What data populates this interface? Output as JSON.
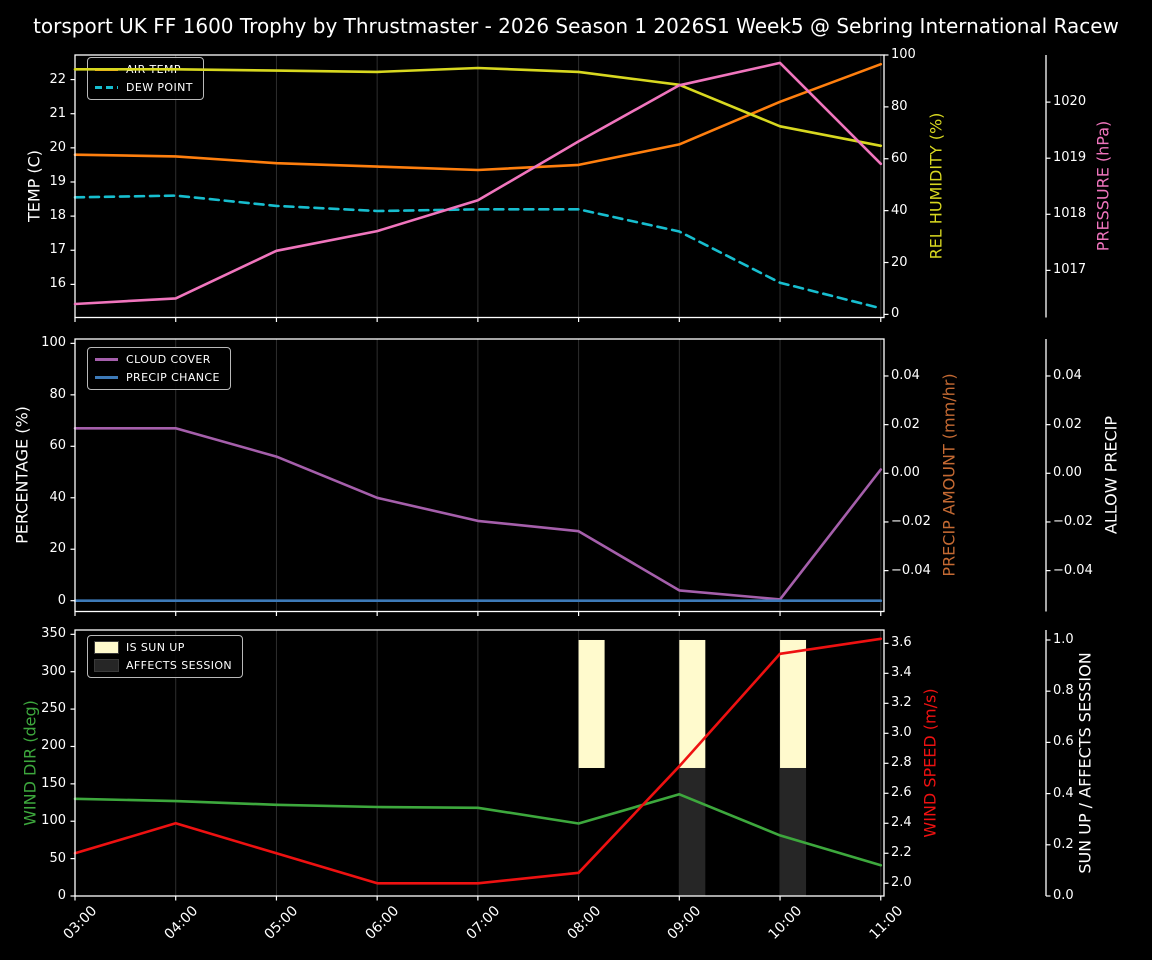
{
  "title": "torsport UK FF 1600 Trophy by Thrustmaster - 2026 Season 1 2026S1 Week5 @ Sebring International Racew",
  "x_axis": {
    "hours": [
      3,
      4,
      5,
      6,
      7,
      8,
      9,
      10,
      11
    ],
    "labels": [
      "03:00",
      "04:00",
      "05:00",
      "06:00",
      "07:00",
      "08:00",
      "09:00",
      "10:00",
      "11:00"
    ]
  },
  "colors": {
    "background": "#000000",
    "foreground": "#ffffff",
    "grid": "#2e2e2e",
    "air_temp": "#ff7f0e",
    "dew_point": "#17becf",
    "humidity": "#d8d820",
    "pressure": "#f075bd",
    "cloud_cover": "#a55fab",
    "precip_chance": "#3d7ab8",
    "precip_amount": "#c56a33",
    "wind_dir": "#3da83d",
    "wind_speed": "#ee1111",
    "sun_up": "#fffacd",
    "affects_session": "#262626"
  },
  "chart_data": [
    {
      "name": "temperature-humidity-pressure",
      "type": "line",
      "x_hours": [
        3,
        4,
        5,
        6,
        7,
        8,
        9,
        10,
        11
      ],
      "grid": "x-only",
      "axes": [
        {
          "id": "temp",
          "position": "left",
          "label": "TEMP (C)",
          "color": "#ffffff",
          "tick_values": [
            16,
            17,
            18,
            19,
            20,
            21,
            22
          ],
          "tick_labels": [
            "16",
            "17",
            "18",
            "19",
            "20",
            "21",
            "22"
          ],
          "range": [
            15.03,
            22.72
          ]
        },
        {
          "id": "humidity",
          "position": "right",
          "label": "REL HUMIDITY (%)",
          "color": "#d8d820",
          "tick_values": [
            0,
            20,
            40,
            60,
            80,
            100
          ],
          "tick_labels": [
            "0",
            "20",
            "40",
            "60",
            "80",
            "100"
          ],
          "range": [
            -1.2,
            100
          ]
        },
        {
          "id": "pressure",
          "position": "detached-right",
          "label": "PRESSURE (hPa)",
          "color": "#f075bd",
          "tick_values": [
            1017,
            1018,
            1019,
            1020
          ],
          "tick_labels": [
            "1017",
            "1018",
            "1019",
            "1020"
          ],
          "range": [
            1016.16,
            1020.84
          ]
        }
      ],
      "series": [
        {
          "name": "AIR TEMP",
          "axis": "temp",
          "color": "#ff7f0e",
          "dashed": false,
          "overlay": false,
          "values": [
            19.8,
            19.75,
            19.55,
            19.45,
            19.35,
            19.5,
            20.1,
            21.35,
            22.45
          ]
        },
        {
          "name": "DEW POINT",
          "axis": "temp",
          "color": "#17becf",
          "dashed": true,
          "overlay": false,
          "values": [
            18.55,
            18.6,
            18.3,
            18.15,
            18.2,
            18.2,
            17.55,
            16.05,
            15.3
          ]
        },
        {
          "name": "REL HUMIDITY",
          "axis": "humidity",
          "color": "#d8d820",
          "dashed": false,
          "overlay": true,
          "values": [
            94.5,
            94.5,
            94,
            93.5,
            95,
            93.5,
            88.5,
            72.5,
            65
          ]
        },
        {
          "name": "PRESSURE",
          "axis": "pressure",
          "color": "#f075bd",
          "dashed": false,
          "overlay": true,
          "values": [
            1016.4,
            1016.5,
            1017.35,
            1017.7,
            1018.25,
            1019.3,
            1020.3,
            1020.7,
            1018.9
          ]
        }
      ],
      "legend": [
        {
          "label": "AIR TEMP",
          "swatch": "line",
          "color": "#ff7f0e",
          "dashed": false
        },
        {
          "label": "DEW POINT",
          "swatch": "line",
          "color": "#17becf",
          "dashed": true
        }
      ]
    },
    {
      "name": "cloud-precipitation",
      "type": "line",
      "x_hours": [
        3,
        4,
        5,
        6,
        7,
        8,
        9,
        10,
        11
      ],
      "grid": "x-only",
      "axes": [
        {
          "id": "pct",
          "position": "left",
          "label": "PERCENTAGE (%)",
          "color": "#ffffff",
          "tick_values": [
            0,
            20,
            40,
            60,
            80,
            100
          ],
          "tick_labels": [
            "0",
            "20",
            "40",
            "60",
            "80",
            "100"
          ],
          "range": [
            -4.2,
            101.7
          ]
        },
        {
          "id": "precip_amount",
          "position": "right",
          "label": "PRECIP AMOUNT (mm/hr)",
          "color": "#c56a33",
          "tick_values": [
            0.04,
            0.02,
            0,
            -0.02,
            -0.04
          ],
          "tick_labels": [
            "0.04",
            "0.02",
            "0.00",
            "−0.02",
            "−0.04"
          ],
          "range": [
            -0.0568,
            0.0552
          ]
        },
        {
          "id": "allow_precip",
          "position": "detached-right",
          "label": "ALLOW PRECIP",
          "color": "#ffffff",
          "tick_values": [
            0.04,
            0.02,
            0,
            -0.02,
            -0.04
          ],
          "tick_labels": [
            "0.04",
            "0.02",
            "0.00",
            "−0.02",
            "−0.04"
          ],
          "range": [
            -0.0568,
            0.0552
          ]
        }
      ],
      "series": [
        {
          "name": "CLOUD COVER",
          "axis": "pct",
          "color": "#a55fab",
          "dashed": false,
          "overlay": false,
          "values": [
            67,
            67,
            56,
            40,
            31,
            27,
            4,
            0.5,
            51
          ]
        },
        {
          "name": "PRECIP CHANCE",
          "axis": "pct",
          "color": "#3d7ab8",
          "dashed": false,
          "overlay": false,
          "values": [
            0,
            0,
            0,
            0,
            0,
            0,
            0,
            0,
            0
          ]
        }
      ],
      "legend": [
        {
          "label": "CLOUD COVER",
          "swatch": "line",
          "color": "#a55fab",
          "dashed": false
        },
        {
          "label": "PRECIP CHANCE",
          "swatch": "line",
          "color": "#3d7ab8",
          "dashed": false
        }
      ]
    },
    {
      "name": "wind-sun",
      "type": "line+bar",
      "x_hours": [
        3,
        4,
        5,
        6,
        7,
        8,
        9,
        10,
        11
      ],
      "grid": "x-only",
      "axes": [
        {
          "id": "wind_dir",
          "position": "left",
          "label": "WIND DIR (deg)",
          "color": "#3da83d",
          "tick_values": [
            0,
            50,
            100,
            150,
            200,
            250,
            300,
            350
          ],
          "tick_labels": [
            "0",
            "50",
            "100",
            "150",
            "200",
            "250",
            "300",
            "350"
          ],
          "range": [
            0,
            355.8
          ]
        },
        {
          "id": "wind_speed",
          "position": "right",
          "label": "WIND SPEED (m/s)",
          "color": "#ee1111",
          "tick_values": [
            2.0,
            2.2,
            2.4,
            2.6,
            2.8,
            3.0,
            3.2,
            3.4,
            3.6
          ],
          "tick_labels": [
            "2.0",
            "2.2",
            "2.4",
            "2.6",
            "2.8",
            "3.0",
            "3.2",
            "3.4",
            "3.6"
          ],
          "range": [
            1.915,
            3.689
          ]
        },
        {
          "id": "sun",
          "position": "detached-right",
          "label": "SUN UP / AFFECTS SESSION",
          "color": "#ffffff",
          "tick_values": [
            0.0,
            0.2,
            0.4,
            0.6,
            0.8,
            1.0
          ],
          "tick_labels": [
            "0.0",
            "0.2",
            "0.4",
            "0.6",
            "0.8",
            "1.0"
          ],
          "range": [
            0,
            1.039
          ]
        }
      ],
      "bars": [
        {
          "name": "IS SUN UP",
          "axis": "sun",
          "color": "#fffacd",
          "hours": [
            8,
            9,
            10
          ],
          "span": [
            0.5,
            1.0
          ]
        },
        {
          "name": "AFFECTS SESSION",
          "axis": "sun",
          "color": "#262626",
          "hours": [
            9,
            10
          ],
          "span": [
            0.0,
            0.5
          ]
        }
      ],
      "series": [
        {
          "name": "WIND DIR",
          "axis": "wind_dir",
          "color": "#3da83d",
          "dashed": false,
          "overlay": false,
          "values": [
            130,
            127,
            122,
            119,
            118,
            97,
            136,
            81,
            41
          ]
        },
        {
          "name": "WIND SPEED",
          "axis": "wind_speed",
          "color": "#ee1111",
          "dashed": false,
          "overlay": false,
          "values": [
            2.2,
            2.4,
            2.2,
            2.0,
            2.0,
            2.07,
            2.78,
            3.53,
            3.63
          ]
        }
      ],
      "legend": [
        {
          "label": "IS SUN UP",
          "swatch": "rect",
          "color": "#fffacd"
        },
        {
          "label": "AFFECTS SESSION",
          "swatch": "rect",
          "color": "#262626"
        }
      ]
    }
  ]
}
